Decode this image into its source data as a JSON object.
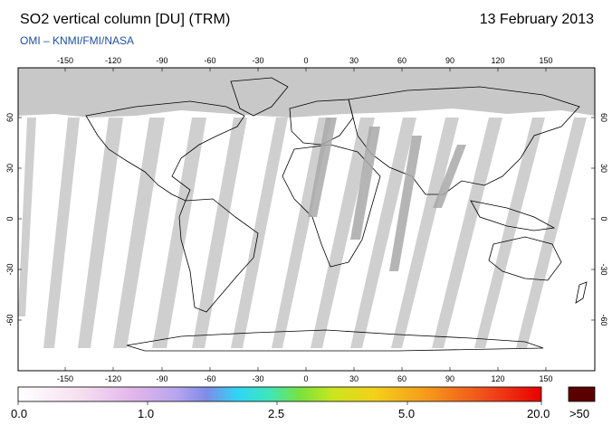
{
  "header": {
    "title": "SO2 vertical column [DU] (TRM)",
    "date": "13 February 2013",
    "credit": "OMI  –  KNMI/FMI/NASA"
  },
  "map": {
    "lon_ticks": [
      "-150",
      "-120",
      "-90",
      "-60",
      "-30",
      "0",
      "30",
      "60",
      "90",
      "120",
      "150"
    ],
    "lat_ticks": [
      "60",
      "30",
      "0",
      "-30",
      "-60"
    ],
    "colors": {
      "no_data": "#c8c8c8",
      "swath_gap": "#a9a9a9",
      "coast": "#000000"
    }
  },
  "colorbar": {
    "labels": [
      "0.0",
      "1.0",
      "2.5",
      "5.0",
      "20.0"
    ],
    "overflow_label": ">50",
    "overflow_color": "#5a0000"
  }
}
